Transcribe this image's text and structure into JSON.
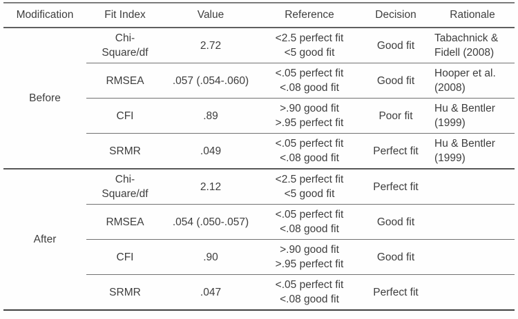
{
  "t": {
    "headers": {
      "modification": "Modification",
      "fit_index": "Fit Index",
      "value": "Value",
      "reference": "Reference",
      "decision": "Decision",
      "rationale": "Rationale"
    },
    "groups": [
      {
        "modification": "Before",
        "rows": [
          {
            "fit_index": "Chi-\nSquare/df",
            "value": "2.72",
            "reference": "<2.5 perfect fit\n<5 good fit",
            "decision": "Good fit",
            "rationale": "Tabachnick &\nFidell (2008)"
          },
          {
            "fit_index": "RMSEA",
            "value": ".057 (.054-.060)",
            "reference": "<.05 perfect fit\n<.08 good fit",
            "decision": "Good fit",
            "rationale": "Hooper et al.\n(2008)"
          },
          {
            "fit_index": "CFI",
            "value": ".89",
            "reference": ">.90 good fit\n>.95 perfect fit",
            "decision": "Poor fit",
            "rationale": "Hu & Bentler\n(1999)"
          },
          {
            "fit_index": "SRMR",
            "value": ".049",
            "reference": "<.05 perfect fit\n<.08 good fit",
            "decision": "Perfect fit",
            "rationale": "Hu & Bentler\n(1999)"
          }
        ]
      },
      {
        "modification": "After",
        "rows": [
          {
            "fit_index": "Chi-\nSquare/df",
            "value": "2.12",
            "reference": "<2.5 perfect fit\n<5 good fit",
            "decision": "Perfect fit",
            "rationale": ""
          },
          {
            "fit_index": "RMSEA",
            "value": ".054 (.050-.057)",
            "reference": "<.05 perfect fit\n<.08 good fit",
            "decision": "Good fit",
            "rationale": ""
          },
          {
            "fit_index": "CFI",
            "value": ".90",
            "reference": ">.90 good fit\n>.95 perfect fit",
            "decision": "Good fit",
            "rationale": ""
          },
          {
            "fit_index": "SRMR",
            "value": ".047",
            "reference": "<.05 perfect fit\n<.08 good fit",
            "decision": "Perfect fit",
            "rationale": ""
          }
        ]
      }
    ],
    "colors": {
      "text": "#3d3d3d",
      "inner_line": "#707070",
      "section_line": "#565656",
      "top_line": "#7a7a7a",
      "bottom_line": "#3f3f3f",
      "background": "#fefefe"
    }
  }
}
